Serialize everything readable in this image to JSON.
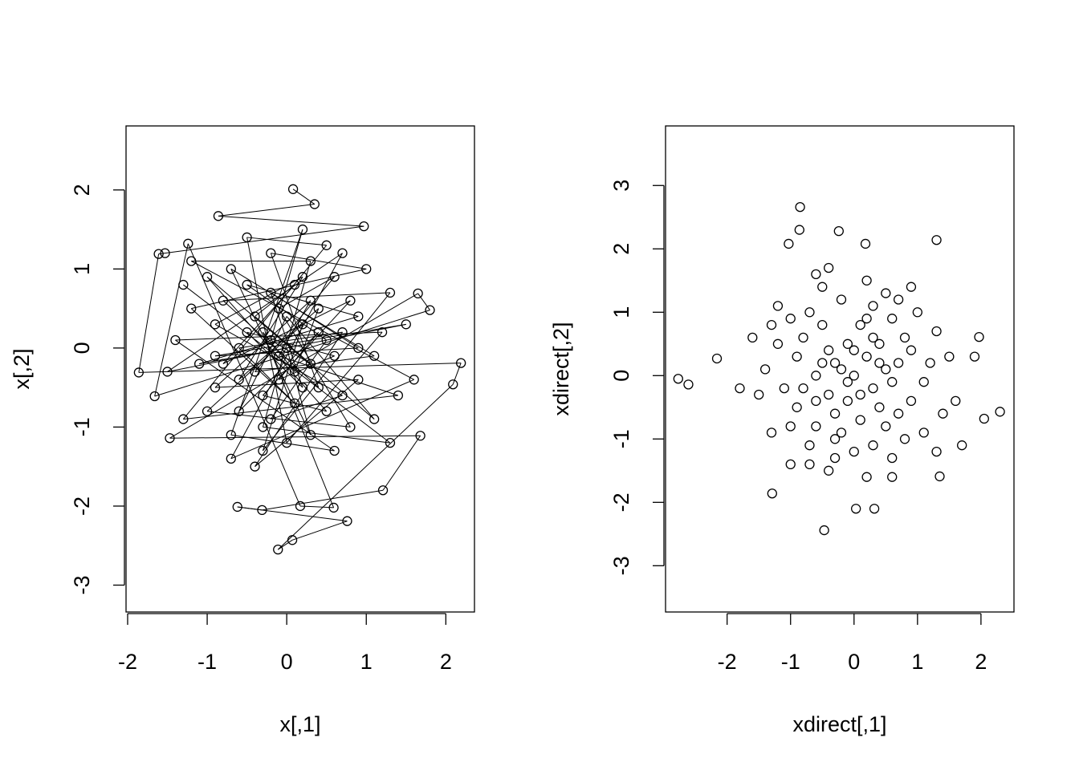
{
  "chart_data": [
    {
      "type": "scatter",
      "xlabel": "x[,1]",
      "ylabel": "x[,2]",
      "xlim": [
        -2.02,
        2.36
      ],
      "ylim": [
        -3.34,
        2.81
      ],
      "xticks": [
        -2,
        -1,
        0,
        1,
        2
      ],
      "yticks": [
        -3,
        -2,
        -1,
        0,
        1,
        2
      ],
      "connected": true,
      "marker": "open-circle",
      "grid": false,
      "points": [
        [
          0.08,
          2.01
        ],
        [
          0.35,
          1.82
        ],
        [
          -0.86,
          1.67
        ],
        [
          0.97,
          1.54
        ],
        [
          -1.53,
          1.2
        ],
        [
          -1.61,
          1.19
        ],
        [
          -1.86,
          -0.31
        ],
        [
          2.19,
          -0.19
        ],
        [
          2.09,
          -0.46
        ],
        [
          -0.11,
          -2.55
        ],
        [
          0.07,
          -2.43
        ],
        [
          0.76,
          -2.19
        ],
        [
          -0.62,
          -2.01
        ],
        [
          -0.31,
          -2.05
        ],
        [
          1.21,
          -1.8
        ],
        [
          1.68,
          -1.11
        ],
        [
          -1.47,
          -1.14
        ],
        [
          1.65,
          0.69
        ],
        [
          1.8,
          0.48
        ],
        [
          -1.66,
          -0.61
        ],
        [
          -1.24,
          1.32
        ],
        [
          0.17,
          -2.0
        ],
        [
          0.59,
          -2.02
        ],
        [
          -0.3,
          0.2
        ],
        [
          0.1,
          -0.3
        ],
        [
          0.4,
          0.5
        ],
        [
          -0.6,
          -0.4
        ],
        [
          0.2,
          0.9
        ],
        [
          -0.9,
          0.3
        ],
        [
          0.7,
          -0.6
        ],
        [
          -0.2,
          -0.9
        ],
        [
          0.5,
          0.1
        ],
        [
          -0.5,
          0.8
        ],
        [
          0.9,
          0.4
        ],
        [
          -1.1,
          -0.2
        ],
        [
          0.0,
          0.0
        ],
        [
          0.3,
          -1.1
        ],
        [
          -0.7,
          1.0
        ],
        [
          1.1,
          -0.1
        ],
        [
          -0.4,
          -0.3
        ],
        [
          0.6,
          0.9
        ],
        [
          -0.1,
          0.5
        ],
        [
          0.8,
          -1.0
        ],
        [
          -1.0,
          -0.8
        ],
        [
          0.2,
          0.3
        ],
        [
          -0.3,
          -1.3
        ],
        [
          1.3,
          0.7
        ],
        [
          -0.8,
          0.6
        ],
        [
          0.4,
          -0.5
        ],
        [
          -0.2,
          1.2
        ],
        [
          1.0,
          1.0
        ],
        [
          -1.2,
          0.5
        ],
        [
          0.1,
          -0.7
        ],
        [
          -0.6,
          0.0
        ],
        [
          0.7,
          0.2
        ],
        [
          -0.4,
          -1.5
        ],
        [
          0.9,
          -0.4
        ],
        [
          -0.9,
          -0.5
        ],
        [
          0.3,
          0.6
        ],
        [
          -0.1,
          -0.1
        ],
        [
          1.4,
          -0.6
        ],
        [
          -1.3,
          -0.9
        ],
        [
          0.5,
          1.3
        ],
        [
          -0.5,
          1.4
        ],
        [
          0.0,
          -1.2
        ],
        [
          1.2,
          0.2
        ],
        [
          -1.4,
          0.1
        ],
        [
          0.6,
          -1.3
        ],
        [
          -0.7,
          -1.1
        ],
        [
          0.2,
          1.5
        ],
        [
          -0.2,
          0.1
        ],
        [
          0.3,
          -0.2
        ],
        [
          -0.4,
          0.4
        ],
        [
          0.1,
          0.8
        ],
        [
          -0.8,
          -0.2
        ],
        [
          0.8,
          0.6
        ],
        [
          -0.3,
          -0.6
        ],
        [
          0.5,
          -0.8
        ],
        [
          -1.0,
          0.9
        ],
        [
          1.1,
          -0.9
        ],
        [
          0.0,
          0.4
        ],
        [
          -0.6,
          -0.8
        ],
        [
          0.4,
          0.2
        ],
        [
          -0.1,
          -0.4
        ],
        [
          0.6,
          -0.1
        ],
        [
          -0.5,
          0.2
        ],
        [
          0.2,
          -0.5
        ],
        [
          -0.2,
          0.7
        ],
        [
          0.9,
          0.0
        ],
        [
          -0.9,
          -0.1
        ],
        [
          1.5,
          0.3
        ],
        [
          -1.5,
          -0.3
        ],
        [
          0.7,
          1.2
        ],
        [
          -0.7,
          -1.4
        ],
        [
          1.6,
          -0.4
        ],
        [
          -1.2,
          1.1
        ],
        [
          0.3,
          1.1
        ],
        [
          -0.3,
          -1.0
        ],
        [
          1.3,
          -1.2
        ],
        [
          -1.3,
          0.8
        ]
      ]
    },
    {
      "type": "scatter",
      "xlabel": "xdirect[,1]",
      "ylabel": "xdirect[,2]",
      "xlim": [
        -2.97,
        2.52
      ],
      "ylim": [
        -3.73,
        3.94
      ],
      "xticks": [
        -2,
        -1,
        0,
        1,
        2
      ],
      "yticks": [
        -3,
        -2,
        -1,
        0,
        1,
        2,
        3
      ],
      "connected": false,
      "marker": "open-circle",
      "grid": false,
      "points": [
        [
          -2.77,
          -0.05
        ],
        [
          -2.61,
          -0.14
        ],
        [
          -0.85,
          2.66
        ],
        [
          -0.24,
          2.28
        ],
        [
          1.3,
          2.14
        ],
        [
          -0.47,
          -2.44
        ],
        [
          2.3,
          -0.57
        ],
        [
          1.97,
          0.61
        ],
        [
          0.32,
          -2.1
        ],
        [
          0.03,
          -2.1
        ],
        [
          -1.29,
          -1.86
        ],
        [
          1.35,
          -1.59
        ],
        [
          -1.03,
          2.08
        ],
        [
          0.18,
          2.08
        ],
        [
          -2.16,
          0.27
        ],
        [
          2.05,
          -0.68
        ],
        [
          -0.86,
          2.3
        ],
        [
          -0.3,
          0.2
        ],
        [
          0.1,
          -0.3
        ],
        [
          0.4,
          0.5
        ],
        [
          -0.6,
          -0.4
        ],
        [
          0.2,
          0.9
        ],
        [
          -0.9,
          0.3
        ],
        [
          0.7,
          -0.6
        ],
        [
          -0.2,
          -0.9
        ],
        [
          0.5,
          0.1
        ],
        [
          -0.5,
          0.8
        ],
        [
          0.9,
          0.4
        ],
        [
          -1.1,
          -0.2
        ],
        [
          0.0,
          0.0
        ],
        [
          0.3,
          -1.1
        ],
        [
          -0.7,
          1.0
        ],
        [
          1.1,
          -0.1
        ],
        [
          -0.4,
          -0.3
        ],
        [
          0.6,
          0.9
        ],
        [
          -0.1,
          0.5
        ],
        [
          0.8,
          -1.0
        ],
        [
          -1.0,
          -0.8
        ],
        [
          0.2,
          0.3
        ],
        [
          -0.3,
          -1.3
        ],
        [
          1.3,
          0.7
        ],
        [
          -0.8,
          0.6
        ],
        [
          0.4,
          -0.5
        ],
        [
          -0.2,
          1.2
        ],
        [
          1.0,
          1.0
        ],
        [
          -1.2,
          0.5
        ],
        [
          0.1,
          -0.7
        ],
        [
          -0.6,
          0.0
        ],
        [
          0.7,
          0.2
        ],
        [
          -0.4,
          -1.5
        ],
        [
          0.9,
          -0.4
        ],
        [
          -0.9,
          -0.5
        ],
        [
          0.3,
          0.6
        ],
        [
          -0.1,
          -0.1
        ],
        [
          1.4,
          -0.6
        ],
        [
          -1.3,
          -0.9
        ],
        [
          0.5,
          1.3
        ],
        [
          -0.5,
          1.4
        ],
        [
          0.0,
          -1.2
        ],
        [
          1.2,
          0.2
        ],
        [
          -1.4,
          0.1
        ],
        [
          0.6,
          -1.3
        ],
        [
          -0.7,
          -1.1
        ],
        [
          0.2,
          1.5
        ],
        [
          -0.2,
          0.1
        ],
        [
          0.3,
          -0.2
        ],
        [
          -0.4,
          0.4
        ],
        [
          0.1,
          0.8
        ],
        [
          -0.8,
          -0.2
        ],
        [
          0.8,
          0.6
        ],
        [
          -0.3,
          -0.6
        ],
        [
          0.5,
          -0.8
        ],
        [
          -1.0,
          0.9
        ],
        [
          1.1,
          -0.9
        ],
        [
          0.0,
          0.4
        ],
        [
          -0.6,
          -0.8
        ],
        [
          0.4,
          0.2
        ],
        [
          -0.1,
          -0.4
        ],
        [
          0.6,
          -0.1
        ],
        [
          -0.5,
          0.2
        ],
        [
          1.5,
          0.3
        ],
        [
          -1.5,
          -0.3
        ],
        [
          0.7,
          1.2
        ],
        [
          -0.7,
          -1.4
        ],
        [
          1.6,
          -0.4
        ],
        [
          -1.2,
          1.1
        ],
        [
          0.3,
          1.1
        ],
        [
          -0.3,
          -1.0
        ],
        [
          1.3,
          -1.2
        ],
        [
          -1.3,
          0.8
        ],
        [
          1.7,
          -1.1
        ],
        [
          -1.6,
          0.6
        ],
        [
          0.9,
          1.4
        ],
        [
          -0.4,
          1.7
        ],
        [
          0.6,
          -1.6
        ],
        [
          -1.0,
          -1.4
        ],
        [
          1.9,
          0.3
        ],
        [
          -1.8,
          -0.2
        ],
        [
          0.2,
          -1.6
        ],
        [
          -0.6,
          1.6
        ]
      ]
    }
  ]
}
